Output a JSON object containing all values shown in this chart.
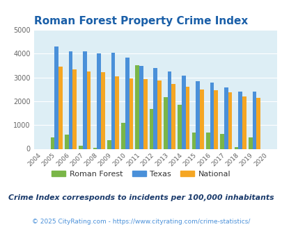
{
  "title": "Roman Forest Property Crime Index",
  "years": [
    2004,
    2005,
    2006,
    2007,
    2008,
    2009,
    2010,
    2011,
    2012,
    2013,
    2014,
    2015,
    2016,
    2017,
    2018,
    2019,
    2020
  ],
  "roman_forest": [
    0,
    480,
    600,
    130,
    30,
    350,
    1100,
    3500,
    1680,
    2170,
    1840,
    690,
    690,
    630,
    70,
    490,
    0
  ],
  "texas": [
    0,
    4300,
    4080,
    4100,
    4000,
    4030,
    3820,
    3490,
    3380,
    3260,
    3060,
    2850,
    2770,
    2590,
    2400,
    2390,
    0
  ],
  "national": [
    0,
    3450,
    3350,
    3250,
    3220,
    3050,
    2960,
    2930,
    2870,
    2730,
    2620,
    2490,
    2460,
    2380,
    2190,
    2130,
    0
  ],
  "roman_forest_color": "#7ab648",
  "texas_color": "#4a90d9",
  "national_color": "#f5a623",
  "bg_color": "#ddeef5",
  "ylim": [
    0,
    5000
  ],
  "yticks": [
    0,
    1000,
    2000,
    3000,
    4000,
    5000
  ],
  "grid_color": "#ffffff",
  "subtitle": "Crime Index corresponds to incidents per 100,000 inhabitants",
  "footer": "© 2025 CityRating.com - https://www.cityrating.com/crime-statistics/",
  "title_color": "#1a5fa8",
  "subtitle_color": "#1a3a6b",
  "footer_color": "#4a90d9",
  "legend_labels": [
    "Roman Forest",
    "Texas",
    "National"
  ]
}
